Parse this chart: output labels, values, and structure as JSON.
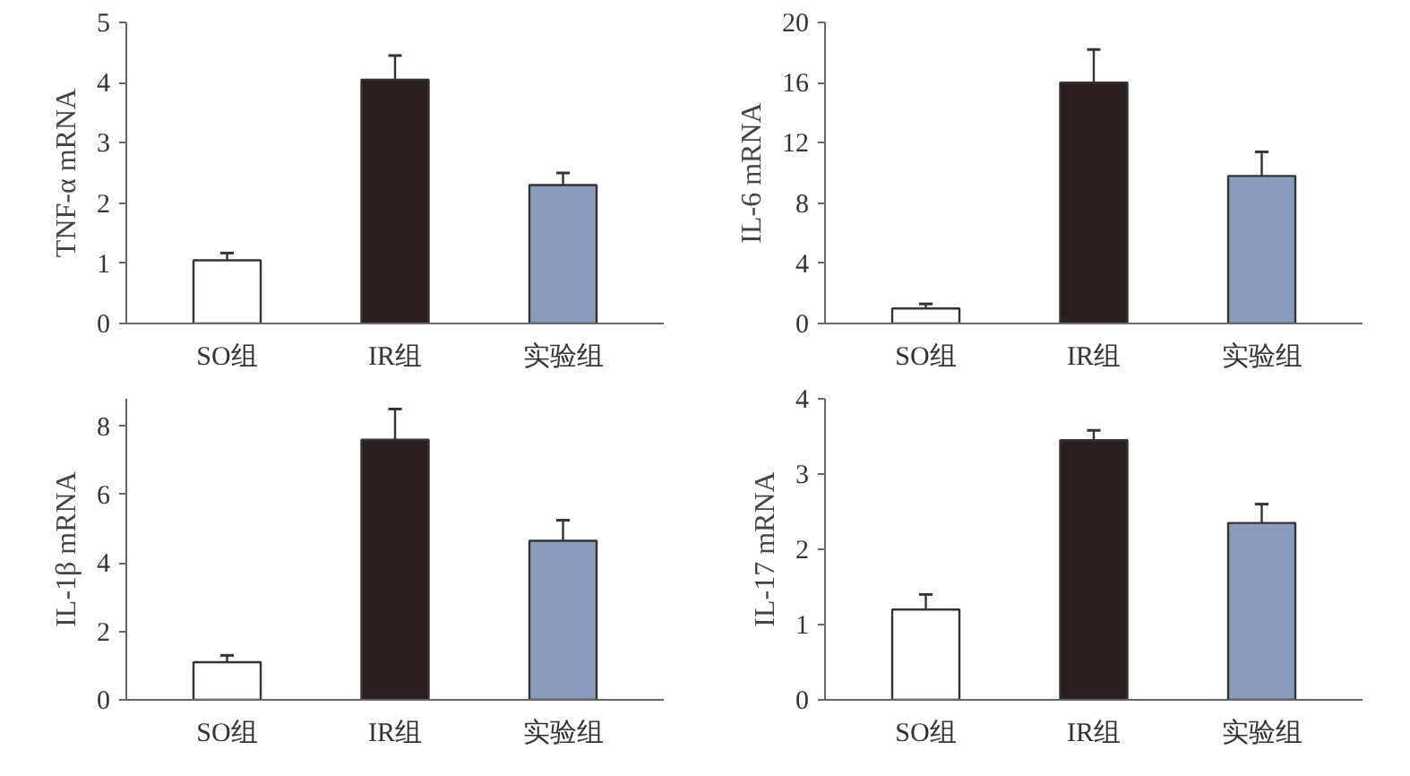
{
  "chart_data": [
    {
      "type": "bar",
      "ylabel": "TNF-α mRNA",
      "categories": [
        "SO组",
        "IR组",
        "实验组"
      ],
      "values": [
        1.05,
        4.05,
        2.3
      ],
      "colors": [
        "#ffffff",
        "#2a1f1f",
        "#8a9bbd"
      ],
      "errors": [
        [
          1.05,
          1.17
        ],
        [
          4.05,
          4.45
        ],
        [
          2.3,
          2.5
        ]
      ],
      "ylim": [
        0,
        5
      ],
      "yticks": [
        0,
        1,
        2,
        3,
        4,
        5
      ],
      "grid": false,
      "legend": false
    },
    {
      "type": "bar",
      "ylabel": "IL-6 mRNA",
      "categories": [
        "SO组",
        "IR组",
        "实验组"
      ],
      "values": [
        1.0,
        16.0,
        9.8
      ],
      "colors": [
        "#ffffff",
        "#2a1f1f",
        "#8a9bbd"
      ],
      "errors": [
        [
          1.0,
          1.3
        ],
        [
          16.0,
          18.2
        ],
        [
          9.8,
          11.4
        ]
      ],
      "ylim": [
        0,
        20
      ],
      "yticks": [
        0,
        4,
        8,
        12,
        16,
        20
      ],
      "grid": false,
      "legend": false
    },
    {
      "type": "bar",
      "ylabel": "IL-1β mRNA",
      "categories": [
        "SO组",
        "IR组",
        "实验组"
      ],
      "values": [
        1.1,
        7.6,
        4.65
      ],
      "colors": [
        "#ffffff",
        "#2a1f1f",
        "#8a9bbd"
      ],
      "errors": [
        [
          1.1,
          1.3
        ],
        [
          7.6,
          8.5
        ],
        [
          4.65,
          5.25
        ]
      ],
      "ylim": [
        0,
        8.8
      ],
      "yticks": [
        0,
        2,
        4,
        6,
        8
      ],
      "grid": false,
      "legend": false
    },
    {
      "type": "bar",
      "ylabel": "IL-17 mRNA",
      "categories": [
        "SO组",
        "IR组",
        "实验组"
      ],
      "values": [
        1.2,
        3.45,
        2.35
      ],
      "colors": [
        "#ffffff",
        "#2a1f1f",
        "#8a9bbd"
      ],
      "errors": [
        [
          1.2,
          1.4
        ],
        [
          3.45,
          3.58
        ],
        [
          2.35,
          2.6
        ]
      ],
      "ylim": [
        0,
        4
      ],
      "yticks": [
        0,
        1,
        2,
        3,
        4
      ],
      "grid": false,
      "legend": false
    }
  ]
}
